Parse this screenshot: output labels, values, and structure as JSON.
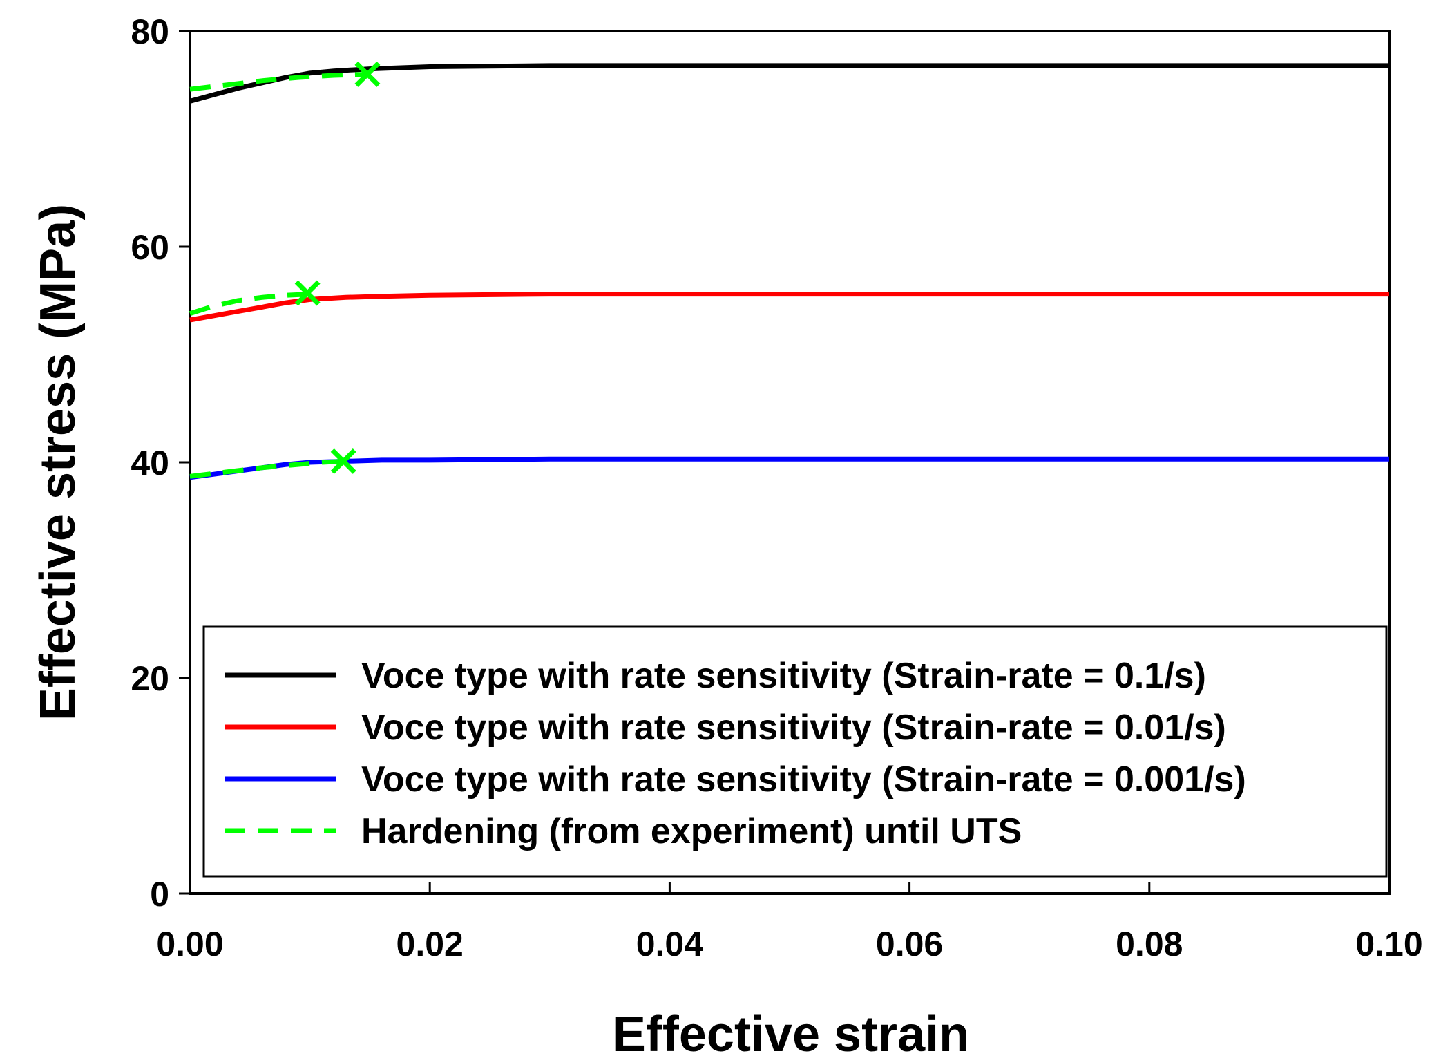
{
  "chart_data": {
    "type": "line",
    "title": "",
    "xlabel": "Effective strain",
    "ylabel": "Effective stress (MPa)",
    "xlim": [
      0,
      0.1
    ],
    "ylim": [
      0,
      80
    ],
    "x_ticks": [
      0.0,
      0.02,
      0.04,
      0.06,
      0.08,
      0.1
    ],
    "x_tick_labels": [
      "0.00",
      "0.02",
      "0.04",
      "0.06",
      "0.08",
      "0.10"
    ],
    "y_ticks": [
      0,
      20,
      40,
      60,
      80
    ],
    "y_tick_labels": [
      "0",
      "20",
      "40",
      "60",
      "80"
    ],
    "grid": false,
    "legend_position": "lower-center",
    "series": [
      {
        "name": "Voce type with rate sensitivity (Strain-rate = 0.1/s)",
        "color": "#000000",
        "style": "solid",
        "x": [
          0.0,
          0.002,
          0.004,
          0.006,
          0.008,
          0.01,
          0.012,
          0.015,
          0.02,
          0.03,
          0.05,
          0.1
        ],
        "y": [
          73.5,
          74.1,
          74.7,
          75.2,
          75.7,
          76.1,
          76.3,
          76.5,
          76.7,
          76.8,
          76.8,
          76.8
        ]
      },
      {
        "name": "Voce type with rate sensitivity (Strain-rate = 0.01/s)",
        "color": "#ff0000",
        "style": "solid",
        "x": [
          0.0,
          0.002,
          0.004,
          0.006,
          0.008,
          0.01,
          0.013,
          0.016,
          0.02,
          0.03,
          0.05,
          0.1
        ],
        "y": [
          53.2,
          53.6,
          54.0,
          54.4,
          54.8,
          55.1,
          55.3,
          55.4,
          55.5,
          55.6,
          55.6,
          55.6
        ]
      },
      {
        "name": "Voce type with rate sensitivity (Strain-rate = 0.001/s)",
        "color": "#0000ff",
        "style": "solid",
        "x": [
          0.0,
          0.002,
          0.004,
          0.006,
          0.008,
          0.01,
          0.013,
          0.016,
          0.02,
          0.03,
          0.05,
          0.1
        ],
        "y": [
          38.6,
          38.9,
          39.2,
          39.5,
          39.8,
          40.0,
          40.1,
          40.2,
          40.2,
          40.3,
          40.3,
          40.3
        ]
      },
      {
        "name": "Hardening (from experiment) until UTS",
        "color": "#00ff00",
        "style": "dashed",
        "segments": [
          {
            "x": [
              0.0,
              0.003,
              0.006,
              0.009,
              0.012,
              0.015
            ],
            "y": [
              74.6,
              75.0,
              75.4,
              75.7,
              75.9,
              76.0
            ]
          },
          {
            "x": [
              0.0,
              0.002,
              0.004,
              0.006,
              0.008,
              0.01
            ],
            "y": [
              53.8,
              54.5,
              55.0,
              55.3,
              55.5,
              55.6
            ]
          },
          {
            "x": [
              0.0,
              0.003,
              0.006,
              0.009,
              0.011,
              0.0128
            ],
            "y": [
              38.7,
              39.1,
              39.5,
              39.8,
              40.0,
              40.1
            ]
          }
        ],
        "uts_markers": [
          {
            "x": 0.0148,
            "y": 76.0
          },
          {
            "x": 0.0098,
            "y": 55.7
          },
          {
            "x": 0.0128,
            "y": 40.1
          }
        ]
      }
    ]
  }
}
